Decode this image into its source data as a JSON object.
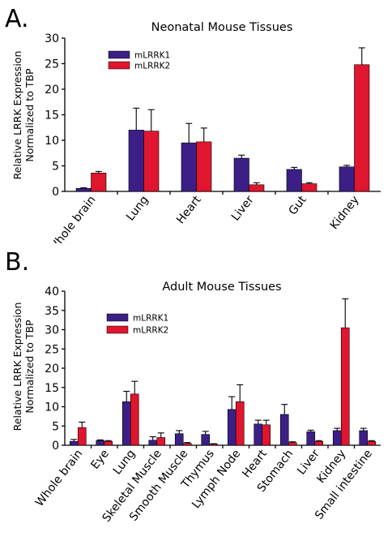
{
  "panels": [
    {
      "label": "A.",
      "title": "Neonatal Mouse Tissues",
      "ylabel_line1": "Relative LRRK Expression",
      "ylabel_line2": "Normalized to TBP"
    },
    {
      "label": "B.",
      "title": "Adult Mouse Tissues",
      "ylabel_line1": "Relative LRRK Expression",
      "ylabel_line2": "Normalized to TBP"
    }
  ],
  "colors": {
    "mLRRK1": "#3b1f86",
    "mLRRK2": "#e0152e"
  },
  "chart_data": [
    {
      "type": "bar",
      "title": "Neonatal Mouse Tissues",
      "xlabel": "",
      "ylabel": "Relative LRRK Expression Normalized to TBP",
      "ylim": [
        0,
        30
      ],
      "yticks": [
        0,
        5,
        10,
        15,
        20,
        25,
        30
      ],
      "categories": [
        "Whole brain",
        "Lung",
        "Heart",
        "Liver",
        "Gut",
        "Kidney"
      ],
      "series": [
        {
          "name": "mLRRK1",
          "values": [
            0.6,
            12.0,
            9.5,
            6.5,
            4.3,
            4.8
          ],
          "errors": [
            0.1,
            4.3,
            3.8,
            0.6,
            0.4,
            0.3
          ]
        },
        {
          "name": "mLRRK2",
          "values": [
            3.6,
            11.8,
            9.7,
            1.3,
            1.5,
            24.8
          ],
          "errors": [
            0.3,
            4.2,
            2.7,
            0.4,
            0.2,
            3.3
          ]
        }
      ],
      "legend": "top-left"
    },
    {
      "type": "bar",
      "title": "Adult Mouse Tissues",
      "xlabel": "",
      "ylabel": "Relative LRRK Expression Normalized to TBP",
      "ylim": [
        0,
        40
      ],
      "yticks": [
        0,
        5,
        10,
        15,
        20,
        25,
        30,
        35,
        40
      ],
      "categories": [
        "Whole brain",
        "Eye",
        "Lung",
        "Skeletal Muscle",
        "Smooth Muscle",
        "Thymus",
        "Lymph Node",
        "Heart",
        "Stomach",
        "Liver",
        "Kidney",
        "Small intestine"
      ],
      "series": [
        {
          "name": "mLRRK1",
          "values": [
            1.0,
            1.2,
            11.3,
            1.3,
            3.0,
            2.8,
            9.3,
            5.5,
            8.0,
            3.5,
            3.8,
            3.8
          ],
          "errors": [
            0.5,
            0.2,
            2.7,
            0.9,
            0.8,
            0.8,
            3.3,
            1.0,
            2.6,
            0.4,
            0.6,
            0.6
          ]
        },
        {
          "name": "mLRRK2",
          "values": [
            4.6,
            1.0,
            13.3,
            2.0,
            0.5,
            0.3,
            11.3,
            5.3,
            0.7,
            1.0,
            30.5,
            1.0
          ],
          "errors": [
            1.4,
            0.2,
            3.3,
            1.2,
            0.2,
            0.1,
            4.4,
            1.2,
            0.2,
            0.2,
            7.5,
            0.2
          ]
        }
      ],
      "legend": "top-left"
    }
  ]
}
